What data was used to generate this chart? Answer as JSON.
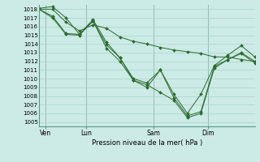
{
  "background_color": "#cceae6",
  "grid_color": "#aad4cc",
  "line_color": "#2d6b2d",
  "marker_color": "#2d6b2d",
  "xlabel": "Pression niveau de la mer( hPa )",
  "ylim": [
    1004.5,
    1018.5
  ],
  "yticks": [
    1005,
    1006,
    1007,
    1008,
    1009,
    1010,
    1011,
    1012,
    1013,
    1014,
    1015,
    1016,
    1017,
    1018
  ],
  "xtick_labels": [
    "Ven",
    "Lun",
    "Sam",
    "Dim"
  ],
  "xtick_positions": [
    0.5,
    3.5,
    8.5,
    12.5
  ],
  "xlim": [
    0,
    16
  ],
  "series": [
    [
      1018.1,
      1018.3,
      1017.0,
      1015.1,
      1016.6,
      1013.9,
      1012.4,
      1009.8,
      1009.0,
      1011.0,
      1008.2,
      1006.0,
      1008.2,
      1011.5,
      1012.7,
      1013.8,
      1012.5
    ],
    [
      1018.0,
      1017.2,
      1015.2,
      1015.1,
      1016.8,
      1014.2,
      1012.4,
      1010.0,
      1009.5,
      1011.0,
      1007.8,
      1005.7,
      1006.2,
      1011.4,
      1012.2,
      1012.9,
      1011.8
    ],
    [
      1018.0,
      1017.0,
      1015.1,
      1015.0,
      1016.7,
      1013.5,
      1012.0,
      1009.8,
      1009.3,
      1008.4,
      1007.5,
      1005.5,
      1006.0,
      1011.2,
      1012.2,
      1013.0,
      1012.0
    ],
    [
      1018.0,
      1018.0,
      1016.5,
      1015.5,
      1016.2,
      1015.8,
      1014.8,
      1014.3,
      1014.0,
      1013.6,
      1013.3,
      1013.1,
      1012.9,
      1012.5,
      1012.5,
      1012.2,
      1012.0
    ]
  ]
}
